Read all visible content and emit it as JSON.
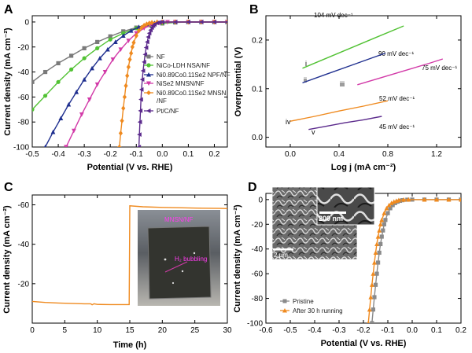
{
  "panels": [
    {
      "letter": "A",
      "xlabel": "Potential (V vs. RHE)",
      "ylabel": "Current density (mA cm⁻²)",
      "xticks": [
        "-0.5",
        "-0.4",
        "-0.3",
        "-0.2",
        "-0.1",
        "0.0",
        "0.1",
        "0.2"
      ],
      "yticks": [
        "0",
        "-20",
        "-40",
        "-60",
        "-80",
        "-100"
      ],
      "legend": [
        {
          "label": "NF",
          "color": "#7a7a7a",
          "marker": "square"
        },
        {
          "label": "NiCo-LDH NSA/NF",
          "color": "#52c234",
          "marker": "circle"
        },
        {
          "label": "Ni0.89Co0.11Se2 NPF/NF",
          "color": "#1f2f8f",
          "marker": "triangle"
        },
        {
          "label": "NiSe2 MNSN/NF",
          "color": "#d23aa8",
          "marker": "triangle-down"
        },
        {
          "label": "Ni0.89Co0.11Se2 MNSN",
          "color": "#ef8a1f",
          "marker": "diamond"
        },
        {
          "label": "/NF",
          "color": "",
          "marker": "none"
        },
        {
          "label": "Pt/C/NF",
          "color": "#5b2a8c",
          "marker": "triangle-left"
        }
      ]
    },
    {
      "letter": "B",
      "xlabel": "Log j (mA cm⁻²)",
      "ylabel": "Overpotential (V)",
      "xticks": [
        "0.0",
        "0.4",
        "0.8",
        "1.2"
      ],
      "yticks": [
        "0.0",
        "0.1",
        "0.2"
      ],
      "annotations": [
        {
          "roman": "i",
          "slope": "104 mV dec⁻¹"
        },
        {
          "roman": "ii",
          "slope": "90 mV dec⁻¹"
        },
        {
          "roman": "iii",
          "slope": "75 mV dec⁻¹"
        },
        {
          "roman": "iv",
          "slope": "52 mV dec⁻¹"
        },
        {
          "roman": "v",
          "slope": "45 mV dec⁻¹"
        }
      ]
    },
    {
      "letter": "C",
      "xlabel": "Time (h)",
      "ylabel": "Current density (mA cm⁻²)",
      "xticks": [
        "0",
        "5",
        "10",
        "15",
        "20",
        "25",
        "30"
      ],
      "yticks": [
        "-20",
        "-40",
        "-60"
      ],
      "photo_label": "MNSN/NF",
      "photo_annotation": "H₂ bubbling"
    },
    {
      "letter": "D",
      "xlabel": "Potential (V vs. RHE)",
      "ylabel": "Current density (mA cm⁻²)",
      "xticks": [
        "-0.6",
        "-0.5",
        "-0.4",
        "-0.3",
        "-0.2",
        "-0.1",
        "0.0",
        "0.1",
        "0.2"
      ],
      "yticks": [
        "0",
        "-20",
        "-40",
        "-60",
        "-80",
        "-100"
      ],
      "legend": [
        {
          "label": "Pristine",
          "color": "#8a8a8a",
          "marker": "square"
        },
        {
          "label": "After 30 h running",
          "color": "#ef8a1f",
          "marker": "triangle"
        }
      ],
      "sem_scale_inner": "200 nm",
      "sem_scale_outer": "2 μm"
    }
  ],
  "chart_data": [
    {
      "panel": "A",
      "type": "line",
      "xlabel": "Potential (V vs. RHE)",
      "ylabel": "Current density (mA cm⁻²)",
      "xlim": [
        -0.5,
        0.25
      ],
      "ylim": [
        -100,
        5
      ],
      "series": [
        {
          "name": "NF",
          "color": "#7a7a7a",
          "x": [
            -0.5,
            -0.45,
            -0.4,
            -0.35,
            -0.3,
            -0.25,
            -0.2,
            -0.15,
            -0.1,
            -0.05,
            0.0,
            0.05,
            0.1,
            0.15,
            0.2,
            0.25
          ],
          "y": [
            -48,
            -40,
            -33,
            -27,
            -21,
            -16,
            -11.5,
            -7.5,
            -4.5,
            -2.5,
            -1.2,
            -0.4,
            0,
            0,
            0,
            0
          ]
        },
        {
          "name": "NiCo-LDH NSA/NF",
          "color": "#52c234",
          "x": [
            -0.5,
            -0.45,
            -0.4,
            -0.35,
            -0.3,
            -0.25,
            -0.2,
            -0.15,
            -0.1,
            -0.05,
            0.0,
            0.05,
            0.1,
            0.15,
            0.2,
            0.25
          ],
          "y": [
            -70,
            -59,
            -48,
            -38,
            -29,
            -21,
            -14,
            -9,
            -5,
            -2.5,
            -1,
            -0.3,
            0,
            0,
            0,
            0
          ]
        },
        {
          "name": "Ni0.89Co0.11Se2 NPF/NF",
          "color": "#1f2f8f",
          "x": [
            -0.45,
            -0.42,
            -0.39,
            -0.36,
            -0.33,
            -0.3,
            -0.27,
            -0.24,
            -0.21,
            -0.18,
            -0.15,
            -0.12,
            -0.09,
            -0.06,
            -0.03,
            0.0,
            0.05,
            0.1,
            0.15,
            0.2,
            0.25
          ],
          "y": [
            -100,
            -88,
            -77,
            -66,
            -56,
            -46,
            -37,
            -29,
            -22,
            -16,
            -11,
            -7,
            -4,
            -2,
            -0.8,
            -0.2,
            0,
            0,
            0,
            0,
            0
          ]
        },
        {
          "name": "NiSe2 MNSN/NF",
          "color": "#d23aa8",
          "x": [
            -0.37,
            -0.34,
            -0.31,
            -0.28,
            -0.25,
            -0.22,
            -0.19,
            -0.16,
            -0.13,
            -0.1,
            -0.07,
            -0.04,
            -0.01,
            0.02,
            0.05,
            0.1,
            0.15,
            0.2,
            0.25
          ],
          "y": [
            -100,
            -87,
            -74,
            -62,
            -50,
            -40,
            -30,
            -22,
            -15,
            -9,
            -5,
            -2.2,
            -0.7,
            -0.1,
            0,
            0,
            0,
            0,
            0
          ]
        },
        {
          "name": "Ni0.89Co0.11Se2 MNSN/NF",
          "color": "#ef8a1f",
          "x": [
            -0.165,
            -0.16,
            -0.155,
            -0.15,
            -0.145,
            -0.14,
            -0.135,
            -0.13,
            -0.125,
            -0.12,
            -0.115,
            -0.11,
            -0.1,
            -0.09,
            -0.08,
            -0.07,
            -0.06,
            -0.05,
            -0.04,
            -0.02,
            0.0,
            0.05,
            0.1,
            0.15,
            0.2,
            0.25
          ],
          "y": [
            -100,
            -89,
            -79,
            -69,
            -60,
            -51,
            -43,
            -36,
            -30,
            -25,
            -20,
            -16.5,
            -11,
            -7,
            -4.5,
            -2.8,
            -1.7,
            -1,
            -0.5,
            -0.1,
            0,
            0,
            0,
            0,
            0,
            0
          ]
        },
        {
          "name": "Pt/C/NF",
          "color": "#5b2a8c",
          "x": [
            -0.09,
            -0.088,
            -0.086,
            -0.084,
            -0.082,
            -0.08,
            -0.077,
            -0.074,
            -0.07,
            -0.066,
            -0.062,
            -0.058,
            -0.054,
            -0.05,
            -0.045,
            -0.04,
            -0.035,
            -0.03,
            -0.02,
            -0.01,
            0.0,
            0.05,
            0.1,
            0.15,
            0.2,
            0.25
          ],
          "y": [
            -100,
            -90,
            -80,
            -71,
            -62,
            -54,
            -46,
            -39,
            -32,
            -26,
            -20.5,
            -16,
            -12,
            -9,
            -6.5,
            -4.5,
            -3,
            -2,
            -0.8,
            -0.2,
            0,
            0,
            0,
            0,
            0,
            0
          ]
        }
      ]
    },
    {
      "panel": "B",
      "type": "line",
      "xlabel": "Log j (mA cm⁻²)",
      "ylabel": "Overpotential (V)",
      "xlim": [
        -0.2,
        1.4
      ],
      "ylim": [
        -0.02,
        0.25
      ],
      "series": [
        {
          "name": "i",
          "color": "#52c234",
          "x": [
            0.1,
            0.3,
            0.5,
            0.7,
            0.93
          ],
          "y": [
            0.142,
            0.163,
            0.184,
            0.205,
            0.229
          ]
        },
        {
          "name": "ii",
          "color": "#1f2f8f",
          "x": [
            0.1,
            0.3,
            0.5,
            0.7,
            0.78
          ],
          "y": [
            0.112,
            0.13,
            0.148,
            0.166,
            0.173
          ]
        },
        {
          "name": "iii",
          "color": "#d23aa8",
          "x": [
            0.55,
            0.75,
            0.95,
            1.15,
            1.25
          ],
          "y": [
            0.108,
            0.123,
            0.138,
            0.153,
            0.161
          ]
        },
        {
          "name": "iv",
          "color": "#ef8a1f",
          "x": [
            0.0,
            0.2,
            0.4,
            0.6,
            0.8
          ],
          "y": [
            0.033,
            0.043,
            0.054,
            0.064,
            0.075
          ]
        },
        {
          "name": "v",
          "color": "#5b2a8c",
          "x": [
            0.15,
            0.3,
            0.45,
            0.6,
            0.75
          ],
          "y": [
            0.016,
            0.023,
            0.03,
            0.036,
            0.043
          ]
        }
      ]
    },
    {
      "panel": "C",
      "type": "line",
      "xlabel": "Time (h)",
      "ylabel": "Current density (mA cm⁻²)",
      "xlim": [
        0,
        30
      ],
      "ylim": [
        0,
        -65
      ],
      "series": [
        {
          "name": "",
          "color": "#ef8a1f",
          "x": [
            0,
            2,
            4,
            6,
            8,
            9,
            9.2,
            9.5,
            10,
            12,
            14,
            14.9,
            15,
            17,
            20,
            23,
            26,
            29,
            30
          ],
          "y": [
            -11,
            -10.5,
            -10.2,
            -10,
            -9.8,
            -9.8,
            -9.3,
            -9.8,
            -9.5,
            -9.4,
            -9.4,
            -9.4,
            -59.5,
            -59,
            -58.7,
            -58.5,
            -58.3,
            -58.2,
            -58.1
          ]
        }
      ]
    },
    {
      "panel": "D",
      "type": "line",
      "xlabel": "Potential (V vs. RHE)",
      "ylabel": "Current density (mA cm⁻²)",
      "xlim": [
        -0.6,
        0.2
      ],
      "ylim": [
        -100,
        5
      ],
      "series": [
        {
          "name": "Pristine",
          "color": "#8a8a8a",
          "x": [
            -0.165,
            -0.16,
            -0.155,
            -0.15,
            -0.145,
            -0.14,
            -0.135,
            -0.13,
            -0.125,
            -0.12,
            -0.115,
            -0.11,
            -0.1,
            -0.09,
            -0.08,
            -0.07,
            -0.06,
            -0.05,
            -0.04,
            -0.02,
            0.0,
            0.05,
            0.1,
            0.15,
            0.2
          ],
          "y": [
            -100,
            -89,
            -79,
            -69,
            -60,
            -51,
            -43,
            -36,
            -30,
            -25,
            -20,
            -16.5,
            -11,
            -7,
            -4.5,
            -2.8,
            -1.7,
            -1,
            -0.5,
            -0.1,
            0,
            0,
            0,
            0,
            0
          ]
        },
        {
          "name": "After 30 h running",
          "color": "#ef8a1f",
          "x": [
            -0.18,
            -0.175,
            -0.17,
            -0.165,
            -0.16,
            -0.155,
            -0.15,
            -0.145,
            -0.14,
            -0.135,
            -0.13,
            -0.125,
            -0.115,
            -0.105,
            -0.095,
            -0.085,
            -0.075,
            -0.065,
            -0.055,
            -0.035,
            -0.015,
            0.05,
            0.1,
            0.15,
            0.2
          ],
          "y": [
            -100,
            -89,
            -79,
            -69,
            -60,
            -51,
            -43,
            -36,
            -30,
            -25,
            -20,
            -16.5,
            -11,
            -7,
            -4.5,
            -2.8,
            -1.7,
            -1,
            -0.5,
            -0.1,
            0,
            0,
            0,
            0,
            0
          ]
        }
      ]
    }
  ]
}
